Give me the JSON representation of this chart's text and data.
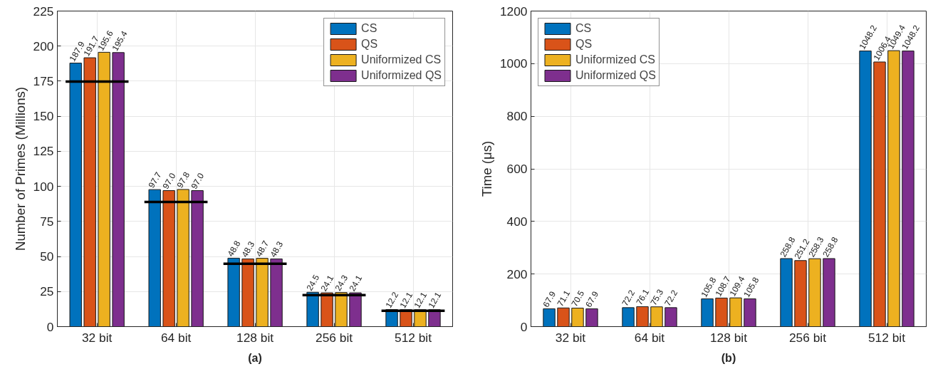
{
  "chart_data": [
    {
      "type": "bar",
      "ylabel": "Number of Primes (Millions)",
      "x": [
        32,
        64,
        128,
        256,
        512
      ],
      "log": "x",
      "xlim": [
        22.6,
        724.1
      ],
      "xticks": [
        {
          "value": 32,
          "label": "32 bit"
        },
        {
          "value": 64,
          "label": "64 bit"
        },
        {
          "value": 128,
          "label": "128 bit"
        },
        {
          "value": 256,
          "label": "256 bit"
        },
        {
          "value": 512,
          "label": "512 bit"
        }
      ],
      "series": [
        {
          "name": "CS",
          "color": "#0072bd",
          "values": [
            187.9,
            97.7,
            48.8,
            24.5,
            12.2
          ],
          "value_labels": [
            "187.9",
            "97.7",
            "48.8",
            "24.5",
            "12.2"
          ]
        },
        {
          "name": "QS",
          "color": "#d95319",
          "values": [
            191.7,
            97.0,
            48.3,
            24.1,
            12.1
          ],
          "value_labels": [
            "191.7",
            "97.0",
            "48.3",
            "24.1",
            "12.1"
          ]
        },
        {
          "name": "Uniformized CS",
          "color": "#edb120",
          "values": [
            195.6,
            97.8,
            48.7,
            24.3,
            12.1
          ],
          "value_labels": [
            "195.6",
            "97.8",
            "48.7",
            "24.3",
            "12.1"
          ]
        },
        {
          "name": "Uniformized QS",
          "color": "#7e2f8e",
          "values": [
            195.4,
            97.0,
            48.3,
            24.1,
            12.1
          ],
          "value_labels": [
            "195.4",
            "97.0",
            "48.3",
            "24.1",
            "12.1"
          ]
        },
        {
          "type": "line",
          "color": "#000000",
          "x": [
            24.3,
            42.2
          ],
          "values": [
            174.7,
            174.7
          ]
        },
        {
          "type": "line",
          "color": "#000000",
          "x": [
            48.5,
            84.4
          ],
          "values": [
            88.9,
            88.9
          ]
        },
        {
          "type": "line",
          "color": "#000000",
          "x": [
            97.0,
            168.9
          ],
          "values": [
            44.8,
            44.8
          ]
        },
        {
          "type": "line",
          "color": "#000000",
          "x": [
            194.0,
            337.8
          ],
          "values": [
            22.5,
            22.5
          ]
        },
        {
          "type": "line",
          "color": "#000000",
          "x": [
            388.0,
            675.6
          ],
          "values": [
            11.3,
            11.3
          ]
        }
      ],
      "ylim": [
        0,
        225
      ],
      "yticks": [
        0,
        25,
        50,
        75,
        100,
        125,
        150,
        175,
        200,
        225
      ],
      "grid": true,
      "legend": "top right",
      "annotations": [
        "(a)"
      ]
    },
    {
      "type": "bar",
      "ylabel": "Time (μs)",
      "categories": [
        "32 bit",
        "64 bit",
        "128 bit",
        "256 bit",
        "512 bit"
      ],
      "series": [
        {
          "name": "CS",
          "color": "#0072bd",
          "values": [
            67.9,
            72.2,
            105.8,
            258.8,
            1048.2
          ]
        },
        {
          "name": "QS",
          "color": "#d95319",
          "values": [
            71.1,
            76.1,
            108.7,
            251.2,
            1006.4
          ]
        },
        {
          "name": "Uniformized CS",
          "color": "#edb120",
          "values": [
            70.5,
            75.3,
            109.4,
            258.3,
            1049.4
          ]
        },
        {
          "name": "Uniformized QS",
          "color": "#7e2f8e",
          "values": [
            67.9,
            72.2,
            105.8,
            258.8,
            1048.2
          ]
        }
      ],
      "ylim": [
        0,
        1200
      ],
      "yticks": [
        0,
        200,
        400,
        600,
        800,
        1000,
        1200
      ],
      "grid": true,
      "legend": "top left",
      "data_labels": true,
      "annotations": [
        "(b)"
      ]
    }
  ]
}
